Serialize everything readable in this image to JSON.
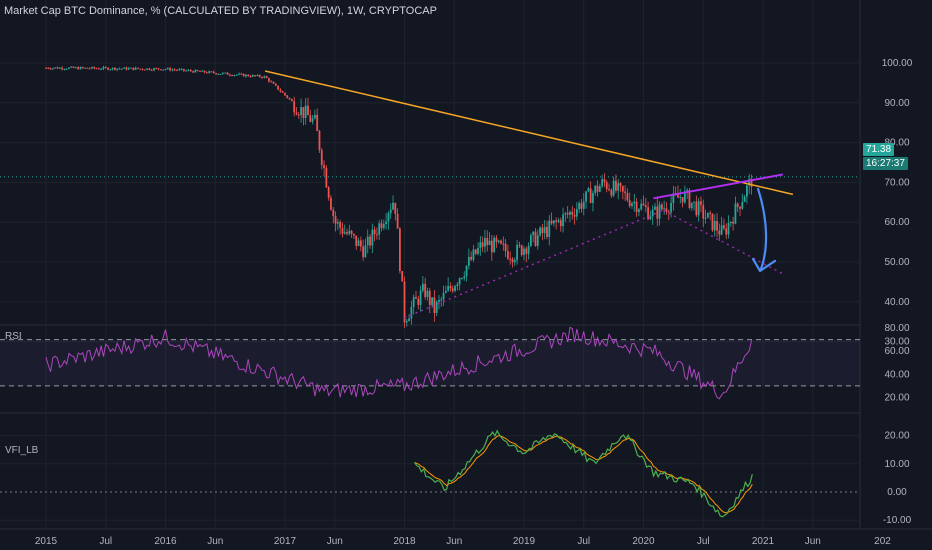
{
  "header": {
    "title": "Market Cap BTC Dominance, % (CALCULATED BY TRADINGVIEW), 1W, CRYPTOCAP"
  },
  "price_pane": {
    "last_price": "71.38",
    "countdown": "16:27:37"
  },
  "rsi_pane": {
    "label": "RSI"
  },
  "vfi_pane": {
    "label": "VFI_LB"
  },
  "colors": {
    "background": "#131722",
    "grid": "#1e222d",
    "up_candle": "#26a69a",
    "down_candle": "#ef5350",
    "resistance_line": "#f5a623",
    "triangle_line": "#b030f0",
    "support_dotted": "#9c27b0",
    "forecast_arrow": "#4c8df6",
    "rsi_line": "#ab47bc",
    "vfi_line": "#4caf50",
    "vfi_signal": "#ff9800",
    "price_tag": "#26a69a"
  },
  "chart_data": [
    {
      "type": "candlestick",
      "title": "Market Cap BTC Dominance, % (CALCULATED BY TRADINGVIEW), 1W, CRYPTOCAP",
      "x_tick_labels": [
        "2015",
        "Jul",
        "2016",
        "Jun",
        "2017",
        "Jun",
        "2018",
        "Jun",
        "2019",
        "Jul",
        "2020",
        "Jul",
        "2021",
        "Jun",
        "202"
      ],
      "y_tick_labels": [
        "100.00",
        "90.00",
        "80.00",
        "70.00",
        "60.00",
        "50.00",
        "40.00",
        "30.00"
      ],
      "ylim": [
        28,
        103
      ],
      "key_points": [
        {
          "x": "2015",
          "y": 98.8
        },
        {
          "x": "2016",
          "y": 98.5
        },
        {
          "x": "2016-11",
          "y": 96.5
        },
        {
          "x": "2017-04",
          "y": 85
        },
        {
          "x": "2017-06",
          "y": 60
        },
        {
          "x": "2017-09",
          "y": 53
        },
        {
          "x": "2017-12",
          "y": 66
        },
        {
          "x": "2018-01",
          "y": 36
        },
        {
          "x": "2018-03",
          "y": 43
        },
        {
          "x": "2018-04",
          "y": 38
        },
        {
          "x": "2018-09",
          "y": 55
        },
        {
          "x": "2018-12",
          "y": 52
        },
        {
          "x": "2019-06",
          "y": 63
        },
        {
          "x": "2019-09",
          "y": 70
        },
        {
          "x": "2020-02",
          "y": 62
        },
        {
          "x": "2020-05",
          "y": 67
        },
        {
          "x": "2020-09",
          "y": 57
        },
        {
          "x": "2020-12",
          "y": 71.38
        }
      ],
      "trendlines": [
        {
          "name": "descending resistance",
          "from": {
            "x": "2016-11",
            "y": 98
          },
          "to": {
            "x": "2021-04",
            "y": 67
          }
        },
        {
          "name": "triangle upper",
          "from": {
            "x": "2020-02",
            "y": 66
          },
          "to": {
            "x": "2021-03",
            "y": 72
          }
        },
        {
          "name": "rising support (dotted)",
          "from": {
            "x": "2018-01",
            "y": 36
          },
          "to": {
            "x": "2020-03",
            "y": 63
          }
        },
        {
          "name": "broken support (dotted)",
          "from": {
            "x": "2020-03",
            "y": 63
          },
          "to": {
            "x": "2021-03",
            "y": 47
          }
        }
      ],
      "last_value": 71.38
    },
    {
      "type": "line",
      "title": "RSI",
      "y_tick_labels": [
        "80.00",
        "60.00",
        "40.00",
        "20.00"
      ],
      "ylim": [
        15,
        85
      ],
      "bands": [
        70,
        30
      ],
      "key_points": [
        {
          "x": "2015",
          "y": 48
        },
        {
          "x": "2016",
          "y": 72
        },
        {
          "x": "2017-05",
          "y": 25
        },
        {
          "x": "2018-01",
          "y": 30
        },
        {
          "x": "2019-06",
          "y": 75
        },
        {
          "x": "2020-02",
          "y": 60
        },
        {
          "x": "2020-09",
          "y": 23
        },
        {
          "x": "2020-12",
          "y": 72
        }
      ]
    },
    {
      "type": "line",
      "title": "VFI_LB",
      "y_tick_labels": [
        "20.00",
        "10.00",
        "0.00",
        "-10.00"
      ],
      "ylim": [
        -12,
        25
      ],
      "zero_line": 0,
      "series": [
        {
          "name": "VFI_LB"
        }
      ],
      "key_points": [
        {
          "x": "2018-02",
          "y": 10
        },
        {
          "x": "2018-05",
          "y": 1
        },
        {
          "x": "2018-10",
          "y": 21
        },
        {
          "x": "2019-01",
          "y": 14
        },
        {
          "x": "2019-04",
          "y": 21
        },
        {
          "x": "2019-08",
          "y": 10
        },
        {
          "x": "2019-11",
          "y": 21
        },
        {
          "x": "2020-02",
          "y": 7
        },
        {
          "x": "2020-06",
          "y": 3
        },
        {
          "x": "2020-09",
          "y": -9
        },
        {
          "x": "2020-12",
          "y": 6
        }
      ]
    }
  ]
}
